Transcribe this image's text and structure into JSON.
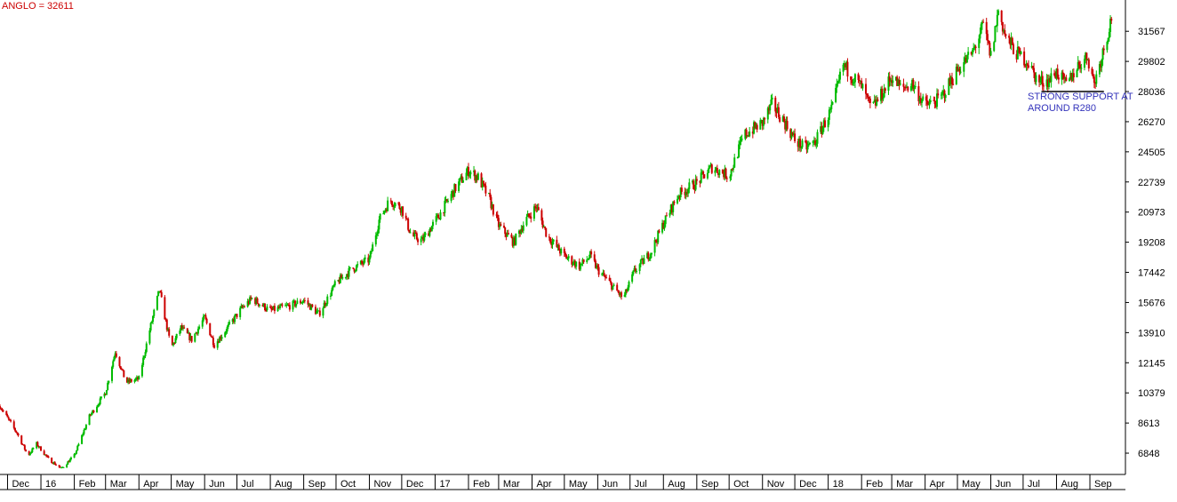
{
  "chart_data": {
    "type": "candlestick",
    "title": "ANGLO = 32611",
    "annotation": "STRONG SUPPORT AT\nAROUND R280",
    "y_ticks": [
      31567,
      29802,
      28036,
      26270,
      24505,
      22739,
      20973,
      19208,
      17442,
      15676,
      13910,
      12145,
      10379,
      8613,
      6848
    ],
    "ylim": [
      5600,
      33400
    ],
    "x_ticks": [
      "Dec",
      "16",
      "Feb",
      "Mar",
      "Apr",
      "May",
      "Jun",
      "Jul",
      "Aug",
      "Sep",
      "Oct",
      "Nov",
      "Dec",
      "17",
      "Feb",
      "Mar",
      "Apr",
      "May",
      "Jun",
      "Jul",
      "Aug",
      "Sep",
      "Oct",
      "Nov",
      "Dec",
      "18",
      "Feb",
      "Mar",
      "Apr",
      "May",
      "Jun",
      "Jul",
      "Aug",
      "Sep"
    ],
    "x_dates": [
      "2015-12",
      "2016-01",
      "2016-02",
      "2016-03",
      "2016-04",
      "2016-05",
      "2016-06",
      "2016-07",
      "2016-08",
      "2016-09",
      "2016-10",
      "2016-11",
      "2016-12",
      "2017-01",
      "2017-02",
      "2017-03",
      "2017-04",
      "2017-05",
      "2017-06",
      "2017-07",
      "2017-08",
      "2017-09",
      "2017-10",
      "2017-11",
      "2017-12",
      "2018-01",
      "2018-02",
      "2018-03",
      "2018-04",
      "2018-05",
      "2018-06",
      "2018-07",
      "2018-08",
      "2018-09"
    ],
    "xlim": [
      "2015-11-24",
      "2018-10-04"
    ],
    "close_trend": [
      [
        "2015-11-24",
        9600
      ],
      [
        "2015-12-10",
        8000
      ],
      [
        "2015-12-20",
        6700
      ],
      [
        "2015-12-28",
        7400
      ],
      [
        "2016-01-08",
        6500
      ],
      [
        "2016-01-20",
        5950
      ],
      [
        "2016-02-01",
        6700
      ],
      [
        "2016-02-15",
        9000
      ],
      [
        "2016-03-01",
        10400
      ],
      [
        "2016-03-10",
        12800
      ],
      [
        "2016-03-20",
        11000
      ],
      [
        "2016-04-01",
        11200
      ],
      [
        "2016-04-10",
        13800
      ],
      [
        "2016-04-20",
        16400
      ],
      [
        "2016-05-01",
        13000
      ],
      [
        "2016-05-10",
        14200
      ],
      [
        "2016-05-20",
        13500
      ],
      [
        "2016-06-01",
        14800
      ],
      [
        "2016-06-10",
        13200
      ],
      [
        "2016-06-20",
        14000
      ],
      [
        "2016-07-05",
        15300
      ],
      [
        "2016-07-15",
        15900
      ],
      [
        "2016-08-01",
        15200
      ],
      [
        "2016-08-20",
        15500
      ],
      [
        "2016-09-01",
        15800
      ],
      [
        "2016-09-15",
        15000
      ],
      [
        "2016-10-01",
        16800
      ],
      [
        "2016-10-15",
        17600
      ],
      [
        "2016-11-01",
        18200
      ],
      [
        "2016-11-10",
        20500
      ],
      [
        "2016-11-20",
        21700
      ],
      [
        "2016-12-01",
        21200
      ],
      [
        "2016-12-10",
        19600
      ],
      [
        "2016-12-20",
        19300
      ],
      [
        "2017-01-05",
        20800
      ],
      [
        "2017-01-20",
        22400
      ],
      [
        "2017-02-01",
        23400
      ],
      [
        "2017-02-10",
        23000
      ],
      [
        "2017-02-20",
        21800
      ],
      [
        "2017-03-01",
        20200
      ],
      [
        "2017-03-15",
        19200
      ],
      [
        "2017-03-25",
        20400
      ],
      [
        "2017-04-05",
        21300
      ],
      [
        "2017-04-15",
        19600
      ],
      [
        "2017-05-01",
        18400
      ],
      [
        "2017-05-15",
        17800
      ],
      [
        "2017-05-25",
        18400
      ],
      [
        "2017-06-01",
        17600
      ],
      [
        "2017-06-15",
        16600
      ],
      [
        "2017-06-25",
        15900
      ],
      [
        "2017-07-05",
        17500
      ],
      [
        "2017-07-20",
        18600
      ],
      [
        "2017-08-01",
        20300
      ],
      [
        "2017-08-15",
        22000
      ],
      [
        "2017-09-01",
        22700
      ],
      [
        "2017-09-15",
        23600
      ],
      [
        "2017-10-01",
        23100
      ],
      [
        "2017-10-15",
        25500
      ],
      [
        "2017-11-01",
        26200
      ],
      [
        "2017-11-10",
        27300
      ],
      [
        "2017-11-20",
        26400
      ],
      [
        "2017-12-01",
        25200
      ],
      [
        "2017-12-10",
        24700
      ],
      [
        "2017-12-20",
        25100
      ],
      [
        "2018-01-05",
        27100
      ],
      [
        "2018-01-15",
        29600
      ],
      [
        "2018-02-01",
        28300
      ],
      [
        "2018-02-10",
        27000
      ],
      [
        "2018-02-20",
        27900
      ],
      [
        "2018-03-01",
        28900
      ],
      [
        "2018-03-10",
        28200
      ],
      [
        "2018-03-20",
        28500
      ],
      [
        "2018-04-01",
        27200
      ],
      [
        "2018-04-15",
        27600
      ],
      [
        "2018-05-01",
        29300
      ],
      [
        "2018-05-15",
        30300
      ],
      [
        "2018-05-25",
        31900
      ],
      [
        "2018-06-01",
        30100
      ],
      [
        "2018-06-08",
        32800
      ],
      [
        "2018-06-15",
        31200
      ],
      [
        "2018-06-25",
        30300
      ],
      [
        "2018-07-05",
        29800
      ],
      [
        "2018-07-15",
        28600
      ],
      [
        "2018-07-25",
        28700
      ],
      [
        "2018-08-01",
        29200
      ],
      [
        "2018-08-10",
        28400
      ],
      [
        "2018-08-20",
        29500
      ],
      [
        "2018-08-30",
        30100
      ],
      [
        "2018-09-05",
        28500
      ],
      [
        "2018-09-15",
        30800
      ],
      [
        "2018-09-22",
        32600
      ]
    ],
    "support_level": 28036,
    "support_range": [
      "2018-07-18",
      "2018-09-14"
    ],
    "colors": {
      "up": "#00bb00",
      "down": "#cc0000",
      "title": "#cc0000",
      "annotation": "#3333bb",
      "axis": "#000000",
      "support": "#000000"
    }
  }
}
